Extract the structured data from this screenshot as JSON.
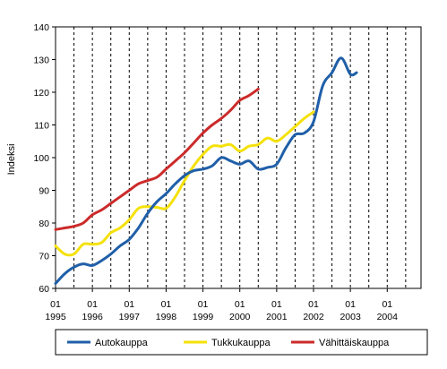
{
  "chart_data": {
    "type": "line",
    "title": "",
    "xlabel": "",
    "ylabel": "Indeksi",
    "ylim": [
      60,
      140
    ],
    "yticks": [
      60,
      70,
      80,
      90,
      100,
      110,
      120,
      130,
      140
    ],
    "xlim": [
      1995.0,
      2004.9167
    ],
    "xtick_labels": [
      {
        "x": 1995,
        "month": "01",
        "year": "1995"
      },
      {
        "x": 1996,
        "month": "01",
        "year": "1996"
      },
      {
        "x": 1997,
        "month": "01",
        "year": "1997"
      },
      {
        "x": 1998,
        "month": "01",
        "year": "1998"
      },
      {
        "x": 1999,
        "month": "01",
        "year": "1999"
      },
      {
        "x": 2000,
        "month": "01",
        "year": "2000"
      },
      {
        "x": 2001,
        "month": "01",
        "year": "2001"
      },
      {
        "x": 2002,
        "month": "01",
        "year": "2002"
      },
      {
        "x": 2003,
        "month": "01",
        "year": "2003"
      },
      {
        "x": 2004,
        "month": "01",
        "year": "2004"
      }
    ],
    "grid": "vertical dashed",
    "legend_position": "bottom",
    "series": [
      {
        "name": "Autokauppa",
        "color": "#1f5fa8",
        "points": [
          [
            1995.0,
            61.5
          ],
          [
            1995.25,
            64.5
          ],
          [
            1995.5,
            66.5
          ],
          [
            1995.75,
            67.5
          ],
          [
            1996.0,
            67.0
          ],
          [
            1996.25,
            68.5
          ],
          [
            1996.5,
            70.5
          ],
          [
            1996.75,
            73.0
          ],
          [
            1997.0,
            75.0
          ],
          [
            1997.25,
            78.5
          ],
          [
            1997.5,
            83.0
          ],
          [
            1997.75,
            86.5
          ],
          [
            1998.0,
            89.0
          ],
          [
            1998.25,
            92.0
          ],
          [
            1998.5,
            94.5
          ],
          [
            1998.75,
            96.0
          ],
          [
            1999.0,
            96.5
          ],
          [
            1999.25,
            97.5
          ],
          [
            1999.5,
            100.0
          ],
          [
            1999.75,
            99.0
          ],
          [
            2000.0,
            98.0
          ],
          [
            2000.25,
            99.0
          ],
          [
            2000.5,
            96.5
          ],
          [
            2000.75,
            97.0
          ],
          [
            2001.0,
            98.0
          ],
          [
            2001.25,
            103.0
          ],
          [
            2001.5,
            107.0
          ],
          [
            2001.75,
            107.5
          ],
          [
            2002.0,
            111.0
          ],
          [
            2002.25,
            122.0
          ],
          [
            2002.5,
            126.0
          ],
          [
            2002.75,
            130.5
          ],
          [
            2003.0,
            125.5
          ],
          [
            2003.17,
            126.0
          ]
        ]
      },
      {
        "name": "Tukkukauppa",
        "color": "#f5e10a",
        "points": [
          [
            1995.0,
            73.0
          ],
          [
            1995.25,
            70.5
          ],
          [
            1995.5,
            70.5
          ],
          [
            1995.75,
            73.5
          ],
          [
            1996.0,
            73.5
          ],
          [
            1996.25,
            74.0
          ],
          [
            1996.5,
            77.0
          ],
          [
            1996.75,
            78.5
          ],
          [
            1997.0,
            81.0
          ],
          [
            1997.25,
            84.5
          ],
          [
            1997.5,
            85.0
          ],
          [
            1997.75,
            84.8
          ],
          [
            1998.0,
            84.5
          ],
          [
            1998.25,
            88.0
          ],
          [
            1998.5,
            93.0
          ],
          [
            1998.75,
            97.5
          ],
          [
            1999.0,
            101.0
          ],
          [
            1999.25,
            103.5
          ],
          [
            1999.5,
            103.5
          ],
          [
            1999.75,
            104.0
          ],
          [
            2000.0,
            102.0
          ],
          [
            2000.25,
            103.5
          ],
          [
            2000.5,
            104.0
          ],
          [
            2000.75,
            106.0
          ],
          [
            2001.0,
            105.0
          ],
          [
            2001.25,
            107.0
          ],
          [
            2001.5,
            109.5
          ],
          [
            2001.75,
            112.0
          ],
          [
            2002.0,
            114.0
          ]
        ]
      },
      {
        "name": "Vähittäiskauppa",
        "color": "#cc2a2a",
        "points": [
          [
            1995.0,
            78.0
          ],
          [
            1995.25,
            78.5
          ],
          [
            1995.5,
            79.0
          ],
          [
            1995.75,
            80.0
          ],
          [
            1996.0,
            82.5
          ],
          [
            1996.25,
            84.0
          ],
          [
            1996.5,
            86.0
          ],
          [
            1996.75,
            88.0
          ],
          [
            1997.0,
            90.0
          ],
          [
            1997.25,
            92.0
          ],
          [
            1997.5,
            93.0
          ],
          [
            1997.75,
            94.0
          ],
          [
            1998.0,
            96.5
          ],
          [
            1998.25,
            99.0
          ],
          [
            1998.5,
            101.5
          ],
          [
            1998.75,
            104.5
          ],
          [
            1999.0,
            107.5
          ],
          [
            1999.25,
            110.0
          ],
          [
            1999.5,
            112.0
          ],
          [
            1999.75,
            114.5
          ],
          [
            2000.0,
            117.5
          ],
          [
            2000.25,
            119.0
          ],
          [
            2000.5,
            121.0
          ]
        ]
      }
    ]
  }
}
